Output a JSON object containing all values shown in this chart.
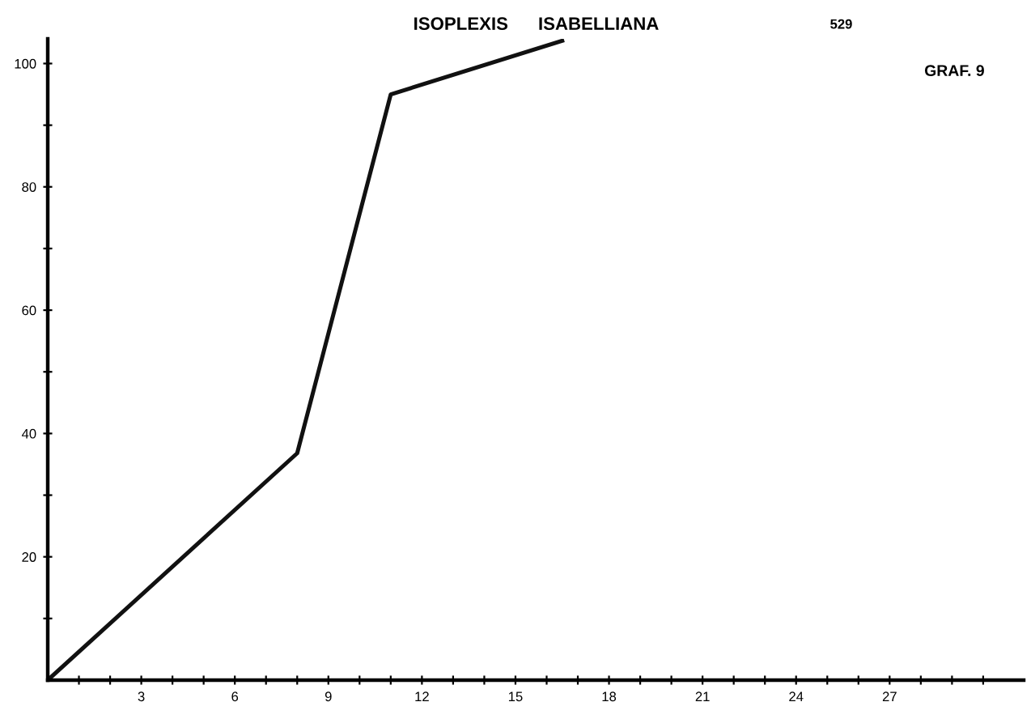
{
  "chart_data": {
    "type": "line",
    "title": "ISOPLEXIS      ISABELLIANA",
    "annotations": [
      "529",
      "GRAF. 9"
    ],
    "x": [
      0,
      8,
      11,
      16.5
    ],
    "values": [
      0,
      36.8,
      95,
      103.7
    ],
    "color": "#111111",
    "xlim": [
      0,
      31.3
    ],
    "ylim": [
      0,
      104
    ],
    "xticks": [
      {
        "value": 1,
        "label": null
      },
      {
        "value": 2,
        "label": null
      },
      3,
      {
        "value": 4,
        "label": null
      },
      {
        "value": 5,
        "label": null
      },
      6,
      {
        "value": 7,
        "label": null
      },
      {
        "value": 8,
        "label": null
      },
      9,
      {
        "value": 10,
        "label": null
      },
      {
        "value": 11,
        "label": null
      },
      12,
      {
        "value": 13,
        "label": null
      },
      {
        "value": 14,
        "label": null
      },
      15,
      {
        "value": 16,
        "label": null
      },
      {
        "value": 17,
        "label": null
      },
      18,
      {
        "value": 19,
        "label": null
      },
      {
        "value": 20,
        "label": null
      },
      21,
      {
        "value": 22,
        "label": null
      },
      {
        "value": 23,
        "label": null
      },
      24,
      {
        "value": 25,
        "label": null
      },
      {
        "value": 26,
        "label": null
      },
      27,
      {
        "value": 28,
        "label": null
      },
      {
        "value": 29,
        "label": null
      },
      {
        "value": 30,
        "label": null
      }
    ],
    "yticks": [
      {
        "value": 10,
        "label": null
      },
      20,
      {
        "value": 30,
        "label": null
      },
      40,
      {
        "value": 50,
        "label": null
      },
      60,
      {
        "value": 70,
        "label": null
      },
      80,
      {
        "value": 90,
        "label": null
      },
      100
    ],
    "grid": false,
    "marker": "none",
    "line_style": "solid"
  }
}
